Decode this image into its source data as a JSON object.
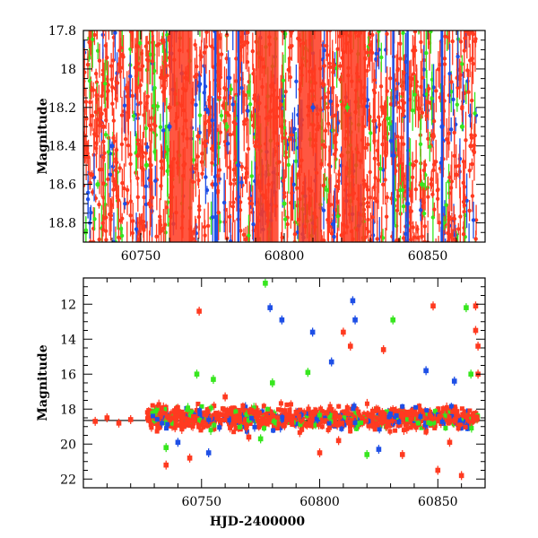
{
  "chart_data": [
    {
      "type": "scatter",
      "panel": "top",
      "title": "",
      "xlabel": "",
      "ylabel": "Magnitude",
      "xlim": [
        60730,
        60870
      ],
      "ylim": [
        18.9,
        17.8
      ],
      "y_inverted": true,
      "x_ticks": [
        60750,
        60800,
        60850
      ],
      "y_ticks": [
        17.8,
        18,
        18.2,
        18.4,
        18.6,
        18.8
      ],
      "x_tick_labels": [
        "60750",
        "60800",
        "60850"
      ],
      "y_tick_labels": [
        "17.8",
        "18",
        "18.2",
        "18.4",
        "18.6",
        "18.8"
      ],
      "grid": false,
      "series": [
        {
          "color": "#ff3a20",
          "values": [
            [
              60733,
              18.55
            ],
            [
              60737,
              18.3
            ],
            [
              60741,
              18.6
            ],
            [
              60745,
              18.1
            ],
            [
              60749,
              18.45
            ],
            [
              60753,
              18.7
            ],
            [
              60760,
              18.2
            ],
            [
              60765,
              18.5
            ],
            [
              60770,
              18.35
            ],
            [
              60775,
              18.6
            ],
            [
              60790,
              18.4
            ],
            [
              60795,
              18.25
            ],
            [
              60805,
              18.55
            ],
            [
              60812,
              18.3
            ],
            [
              60820,
              18.45
            ],
            [
              60828,
              18.6
            ],
            [
              60835,
              18.2
            ],
            [
              60845,
              18.5
            ],
            [
              60852,
              18.35
            ],
            [
              60860,
              18.55
            ],
            [
              60865,
              18.4
            ]
          ]
        },
        {
          "color": "#1e4fe6",
          "values": [
            [
              60740,
              18.4
            ],
            [
              60760,
              18.3
            ],
            [
              60776,
              18.6
            ],
            [
              60784,
              18.5
            ],
            [
              60810,
              18.2
            ],
            [
              60838,
              18.45
            ],
            [
              60843,
              18.7
            ],
            [
              60855,
              18.3
            ]
          ]
        },
        {
          "color": "#37e61e",
          "values": [
            [
              60735,
              18.6
            ],
            [
              60752,
              18.5
            ],
            [
              60780,
              18.3
            ],
            [
              60800,
              18.7
            ],
            [
              60822,
              18.2
            ],
            [
              60848,
              18.6
            ],
            [
              60862,
              18.3
            ]
          ]
        }
      ]
    },
    {
      "type": "scatter",
      "panel": "bottom",
      "title": "",
      "xlabel": "HJD-2400000",
      "ylabel": "Magnitude",
      "xlim": [
        60700,
        60870
      ],
      "ylim": [
        22.5,
        10.5
      ],
      "y_inverted": true,
      "x_ticks": [
        60750,
        60800,
        60850
      ],
      "y_ticks": [
        12,
        14,
        16,
        18,
        20,
        22
      ],
      "x_tick_labels": [
        "60750",
        "60800",
        "60850"
      ],
      "y_tick_labels": [
        "12",
        "14",
        "16",
        "18",
        "20",
        "22"
      ],
      "grid": false,
      "reference_line_mag": 18.65,
      "series": [
        {
          "color": "#ff3a20",
          "values": [
            [
              60705,
              18.7
            ],
            [
              60710,
              18.5
            ],
            [
              60715,
              18.8
            ],
            [
              60720,
              18.6
            ],
            [
              60749,
              12.4
            ],
            [
              60735,
              21.2
            ],
            [
              60745,
              20.8
            ],
            [
              60760,
              17.3
            ],
            [
              60770,
              19.6
            ],
            [
              60800,
              20.5
            ],
            [
              60808,
              19.8
            ],
            [
              60810,
              13.6
            ],
            [
              60813,
              14.4
            ],
            [
              60827,
              14.6
            ],
            [
              60835,
              20.6
            ],
            [
              60848,
              12.1
            ],
            [
              60850,
              21.5
            ],
            [
              60855,
              19.9
            ],
            [
              60860,
              21.8
            ],
            [
              60866,
              13.5
            ],
            [
              60867,
              14.4
            ],
            [
              60867,
              16.0
            ],
            [
              60866,
              12.1
            ]
          ]
        },
        {
          "color": "#1e4fe6",
          "values": [
            [
              60779,
              12.2
            ],
            [
              60784,
              12.9
            ],
            [
              60797,
              13.6
            ],
            [
              60805,
              15.3
            ],
            [
              60814,
              11.8
            ],
            [
              60815,
              12.9
            ],
            [
              60825,
              20.3
            ],
            [
              60845,
              15.8
            ],
            [
              60857,
              16.4
            ],
            [
              60753,
              20.5
            ],
            [
              60740,
              19.9
            ]
          ]
        },
        {
          "color": "#37e61e",
          "values": [
            [
              60777,
              10.8
            ],
            [
              60748,
              16.0
            ],
            [
              60755,
              16.3
            ],
            [
              60780,
              16.5
            ],
            [
              60795,
              15.9
            ],
            [
              60831,
              12.9
            ],
            [
              60862,
              12.2
            ],
            [
              60864,
              16.0
            ],
            [
              60735,
              20.2
            ],
            [
              60775,
              19.7
            ],
            [
              60820,
              20.6
            ]
          ]
        }
      ]
    }
  ]
}
